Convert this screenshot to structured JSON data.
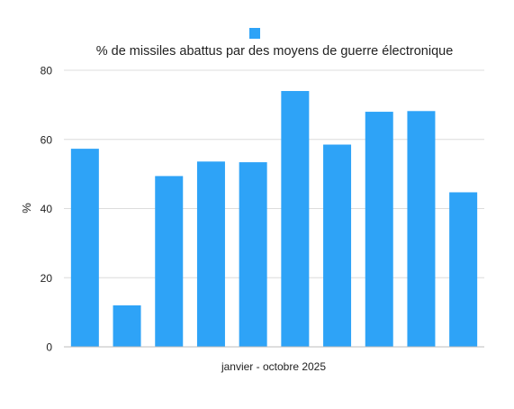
{
  "chart_data": {
    "type": "bar",
    "legend": {
      "placement": "top-center",
      "entries": [
        {
          "name": "% de missiles abattus par des moyens de guerre électronique",
          "color": "#2ea3f7"
        }
      ]
    },
    "xlabel": "janvier - octobre 2025",
    "ylabel": "%",
    "ylim": [
      0,
      80
    ],
    "yticks": [
      0,
      20,
      40,
      60,
      80
    ],
    "grid": true,
    "bar_color": "#2ea3f7",
    "series": [
      {
        "name": "% de missiles abattus par des moyens de guerre électronique",
        "values": [
          57.3,
          12.0,
          49.4,
          53.6,
          53.4,
          74.0,
          58.5,
          68.0,
          68.2,
          44.7
        ]
      }
    ]
  }
}
